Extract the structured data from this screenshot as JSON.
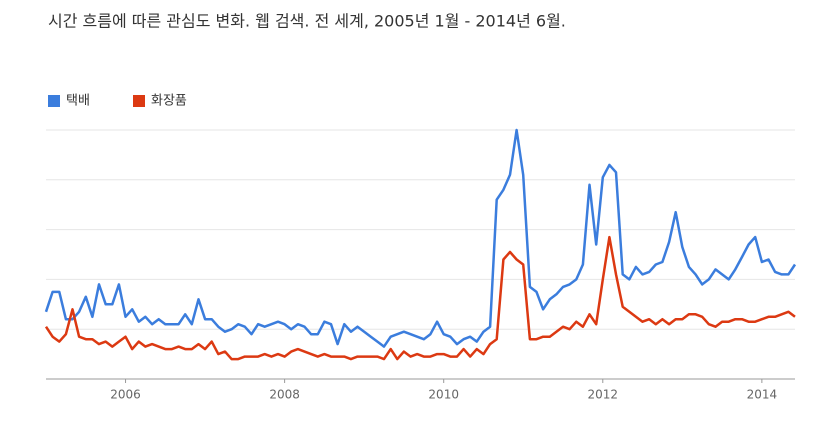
{
  "chart_data": {
    "type": "line",
    "title": "시간 흐름에 따른 관심도 변화. 웹 검색. 전 세계, 2005년 1월 - 2014년 6월.",
    "categories": [
      null,
      null,
      null,
      null,
      null,
      null,
      null,
      null,
      null,
      null,
      null,
      null,
      "2006",
      null,
      null,
      null,
      null,
      null,
      null,
      null,
      null,
      null,
      null,
      null,
      null,
      null,
      null,
      null,
      null,
      null,
      null,
      null,
      null,
      null,
      null,
      null,
      "2008",
      null,
      null,
      null,
      null,
      null,
      null,
      null,
      null,
      null,
      null,
      null,
      null,
      null,
      null,
      null,
      null,
      null,
      null,
      null,
      null,
      null,
      null,
      null,
      "2010",
      null,
      null,
      null,
      null,
      null,
      null,
      null,
      null,
      null,
      null,
      null,
      null,
      null,
      null,
      null,
      null,
      null,
      null,
      null,
      null,
      null,
      null,
      null,
      "2012",
      null,
      null,
      null,
      null,
      null,
      null,
      null,
      null,
      null,
      null,
      null,
      null,
      null,
      null,
      null,
      null,
      null,
      null,
      null,
      null,
      null,
      null,
      null,
      "2014",
      null,
      null,
      null,
      null,
      null
    ],
    "series": [
      {
        "name": "택배",
        "color": "#3b7ddd",
        "values": [
          27,
          35,
          35,
          24,
          24,
          27,
          33,
          25,
          38,
          30,
          30,
          38,
          25,
          28,
          23,
          25,
          22,
          24,
          22,
          22,
          22,
          26,
          22,
          32,
          24,
          24,
          21,
          19,
          20,
          22,
          21,
          18,
          22,
          21,
          22,
          23,
          22,
          20,
          22,
          21,
          18,
          18,
          23,
          22,
          14,
          22,
          19,
          21,
          19,
          17,
          15,
          13,
          17,
          18,
          19,
          18,
          17,
          16,
          18,
          23,
          18,
          17,
          14,
          16,
          17,
          15,
          19,
          21,
          72,
          76,
          82,
          100,
          82,
          37,
          35,
          28,
          32,
          34,
          37,
          38,
          40,
          46,
          78,
          54,
          81,
          86,
          83,
          42,
          40,
          45,
          42,
          43,
          46,
          47,
          55,
          67,
          53,
          45,
          42,
          38,
          40,
          44,
          42,
          40,
          44,
          49,
          54,
          57,
          47,
          48,
          43,
          42,
          42,
          46
        ]
      },
      {
        "name": "화장품",
        "color": "#dc3912",
        "values": [
          21,
          17,
          15,
          18,
          28,
          17,
          16,
          16,
          14,
          15,
          13,
          15,
          17,
          12,
          15,
          13,
          14,
          13,
          12,
          12,
          13,
          12,
          12,
          14,
          12,
          15,
          10,
          11,
          8,
          8,
          9,
          9,
          9,
          10,
          9,
          10,
          9,
          11,
          12,
          11,
          10,
          9,
          10,
          9,
          9,
          9,
          8,
          9,
          9,
          9,
          9,
          8,
          12,
          8,
          11,
          9,
          10,
          9,
          9,
          10,
          10,
          9,
          9,
          12,
          9,
          12,
          10,
          14,
          16,
          48,
          51,
          48,
          46,
          16,
          16,
          17,
          17,
          19,
          21,
          20,
          23,
          21,
          26,
          22,
          40,
          57,
          42,
          29,
          27,
          25,
          23,
          24,
          22,
          24,
          22,
          24,
          24,
          26,
          26,
          25,
          22,
          21,
          23,
          23,
          24,
          24,
          23,
          23,
          24,
          25,
          25,
          26,
          27,
          25
        ]
      }
    ],
    "ylim": [
      0,
      100
    ],
    "yticks": [
      0,
      20,
      40,
      60,
      80,
      100
    ],
    "grid": true
  }
}
